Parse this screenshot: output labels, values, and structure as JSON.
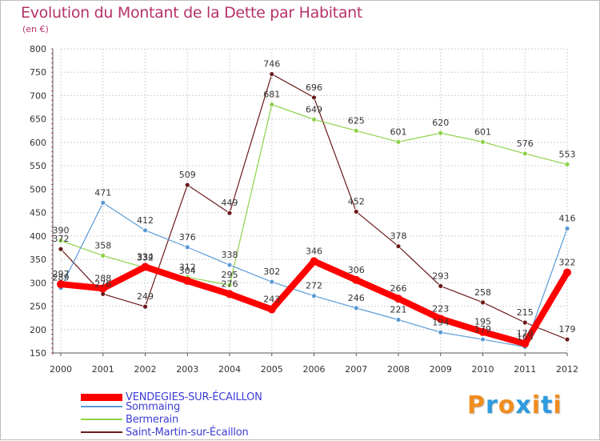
{
  "chart_data": {
    "type": "line",
    "title": "Evolution du Montant de la Dette par Habitant",
    "subtitle": "(en €)",
    "xlabel": "",
    "ylabel": "",
    "ylim": [
      150,
      800
    ],
    "yticks": [
      150,
      200,
      250,
      300,
      350,
      400,
      450,
      500,
      550,
      600,
      650,
      700,
      750,
      800
    ],
    "grid": true,
    "legend_position": "bottom-left",
    "x": [
      "2000",
      "2001",
      "2002",
      "2003",
      "2004",
      "2005",
      "2006",
      "2007",
      "2008",
      "2009",
      "2010",
      "2011",
      "2012"
    ],
    "series": [
      {
        "name": "VENDEGIES-SUR-ÉCAILLON",
        "color": "#ff0000",
        "values": [
          297,
          288,
          334,
          304,
          276,
          243,
          346,
          306,
          266,
          223,
          195,
          170,
          322
        ]
      },
      {
        "name": "Sommaing",
        "color": "#5b9bd5",
        "values": [
          289,
          471,
          412,
          376,
          338,
          302,
          272,
          246,
          221,
          194,
          179,
          163,
          416
        ]
      },
      {
        "name": "Bermerain",
        "color": "#8ed14a",
        "values": [
          390,
          358,
          332,
          312,
          295,
          681,
          649,
          625,
          601,
          620,
          601,
          576,
          553
        ]
      },
      {
        "name": "Saint-Martin-sur-Écaillon",
        "color": "#6b1a1a",
        "values": [
          372,
          276,
          249,
          509,
          449,
          746,
          696,
          452,
          378,
          293,
          258,
          215,
          179
        ]
      }
    ]
  },
  "branding": {
    "logo_text": "Proxiti",
    "logo_colors": [
      "#f28c1e",
      "#2e9be0",
      "#f28c1e",
      "#2e9be0",
      "#f28c1e",
      "#2e9be0",
      "#f28c1e"
    ]
  }
}
